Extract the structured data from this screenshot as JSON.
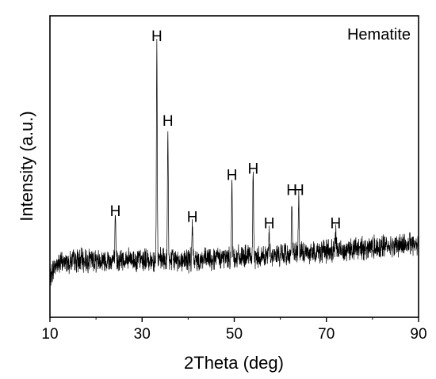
{
  "chart_data": {
    "type": "line",
    "title": "",
    "xlabel": "2Theta (deg)",
    "ylabel": "Intensity (a.u.)",
    "xlim": [
      10,
      90
    ],
    "x_ticks": [
      "10",
      "30",
      "50",
      "70",
      "90"
    ],
    "y_ticks": [],
    "grid": false,
    "legend": {
      "text": "Hematite",
      "position": "top-right"
    },
    "colors": {
      "line": "#000000",
      "axes": "#000000",
      "background": "#ffffff"
    },
    "baseline": {
      "x": [
        10,
        10.5,
        11,
        12,
        14,
        18,
        22,
        26,
        30,
        34,
        38,
        42,
        46,
        50,
        54,
        58,
        62,
        66,
        70,
        74,
        78,
        82,
        86,
        90
      ],
      "y": [
        0.12,
        0.15,
        0.17,
        0.18,
        0.185,
        0.19,
        0.19,
        0.19,
        0.19,
        0.19,
        0.19,
        0.19,
        0.195,
        0.2,
        0.2,
        0.205,
        0.21,
        0.215,
        0.22,
        0.225,
        0.23,
        0.235,
        0.24,
        0.245
      ]
    },
    "noise_amplitude": 0.03,
    "peaks": [
      {
        "x": 24.2,
        "y": 0.32,
        "label": "H"
      },
      {
        "x": 33.2,
        "y": 0.9,
        "label": "H"
      },
      {
        "x": 35.6,
        "y": 0.62,
        "label": "H"
      },
      {
        "x": 40.9,
        "y": 0.3,
        "label": "H"
      },
      {
        "x": 49.5,
        "y": 0.44,
        "label": "H"
      },
      {
        "x": 54.1,
        "y": 0.46,
        "label": "H"
      },
      {
        "x": 57.6,
        "y": 0.28,
        "label": "H"
      },
      {
        "x": 62.5,
        "y": 0.39,
        "label": "H"
      },
      {
        "x": 64.0,
        "y": 0.39,
        "label": "H"
      },
      {
        "x": 72.0,
        "y": 0.28,
        "label": "H"
      }
    ]
  }
}
